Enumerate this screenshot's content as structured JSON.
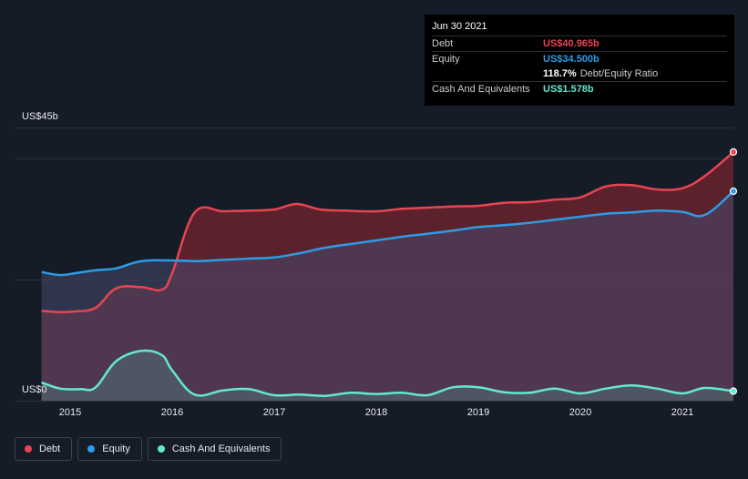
{
  "colors": {
    "debt": "#e64553",
    "equity": "#2e9be6",
    "cash": "#64e8cf",
    "background": "#151b27",
    "grid": "#2a3040"
  },
  "y_axis": {
    "max_label": "US$45b",
    "min_label": "US$0"
  },
  "tooltip": {
    "date": "Jun 30 2021",
    "rows": [
      {
        "label": "Debt",
        "value": "US$40.965b"
      },
      {
        "label": "Equity",
        "value": "US$34.500b"
      },
      {
        "label": "",
        "value": "118.7%",
        "extra": "Debt/Equity Ratio"
      },
      {
        "label": "Cash And Equivalents",
        "value": "US$1.578b"
      }
    ]
  },
  "legend": [
    {
      "label": "Debt",
      "color": "#e64553"
    },
    {
      "label": "Equity",
      "color": "#2e9be6"
    },
    {
      "label": "Cash And Equivalents",
      "color": "#64e8cf"
    }
  ],
  "chart_data": {
    "type": "area",
    "title": "",
    "ylim": [
      0,
      45
    ],
    "x_tick_labels": [
      "2015",
      "2016",
      "2017",
      "2018",
      "2019",
      "2020",
      "2021"
    ],
    "x_ticks": [
      2015.0,
      2016.0,
      2017.0,
      2018.0,
      2019.0,
      2020.0,
      2021.0
    ],
    "xlim": [
      2014.6,
      2021.5
    ],
    "grid": true,
    "series": [
      {
        "name": "Debt",
        "x": [
          2014.72,
          2014.9,
          2015.05,
          2015.25,
          2015.45,
          2015.7,
          2015.9,
          2016.0,
          2016.22,
          2016.5,
          2016.75,
          2017.0,
          2017.22,
          2017.45,
          2017.7,
          2018.0,
          2018.25,
          2018.5,
          2018.75,
          2019.0,
          2019.25,
          2019.5,
          2019.75,
          2020.0,
          2020.25,
          2020.5,
          2020.75,
          2021.0,
          2021.22,
          2021.5
        ],
        "y": [
          14.8,
          14.6,
          14.7,
          15.3,
          18.5,
          18.7,
          18.3,
          21.0,
          31.0,
          31.2,
          31.3,
          31.5,
          32.4,
          31.5,
          31.3,
          31.2,
          31.6,
          31.8,
          32.0,
          32.1,
          32.6,
          32.7,
          33.1,
          33.5,
          35.3,
          35.5,
          34.8,
          35.0,
          37.0,
          40.965
        ]
      },
      {
        "name": "Equity",
        "x": [
          2014.72,
          2014.9,
          2015.05,
          2015.25,
          2015.45,
          2015.7,
          2016.0,
          2016.25,
          2016.5,
          2016.75,
          2017.0,
          2017.25,
          2017.5,
          2017.75,
          2018.0,
          2018.25,
          2018.5,
          2018.75,
          2019.0,
          2019.25,
          2019.5,
          2019.75,
          2020.0,
          2020.25,
          2020.5,
          2020.75,
          2021.0,
          2021.22,
          2021.5
        ],
        "y": [
          21.2,
          20.7,
          21.0,
          21.5,
          21.8,
          23.0,
          23.1,
          23.0,
          23.2,
          23.4,
          23.6,
          24.3,
          25.2,
          25.8,
          26.4,
          27.0,
          27.5,
          28.0,
          28.6,
          28.9,
          29.3,
          29.8,
          30.3,
          30.8,
          31.0,
          31.3,
          31.1,
          30.6,
          34.5
        ]
      },
      {
        "name": "Cash And Equivalents",
        "x": [
          2014.72,
          2014.9,
          2015.1,
          2015.25,
          2015.45,
          2015.7,
          2015.9,
          2016.0,
          2016.22,
          2016.5,
          2016.75,
          2017.0,
          2017.25,
          2017.5,
          2017.75,
          2018.0,
          2018.25,
          2018.5,
          2018.75,
          2019.0,
          2019.25,
          2019.5,
          2019.75,
          2020.0,
          2020.25,
          2020.5,
          2020.75,
          2021.0,
          2021.22,
          2021.5
        ],
        "y": [
          3.0,
          2.0,
          1.9,
          2.2,
          6.5,
          8.2,
          7.5,
          5.0,
          1.0,
          1.7,
          1.9,
          0.9,
          1.0,
          0.8,
          1.3,
          1.1,
          1.3,
          0.9,
          2.2,
          2.2,
          1.4,
          1.3,
          2.0,
          1.2,
          2.0,
          2.5,
          2.0,
          1.2,
          2.1,
          1.578
        ]
      }
    ]
  }
}
